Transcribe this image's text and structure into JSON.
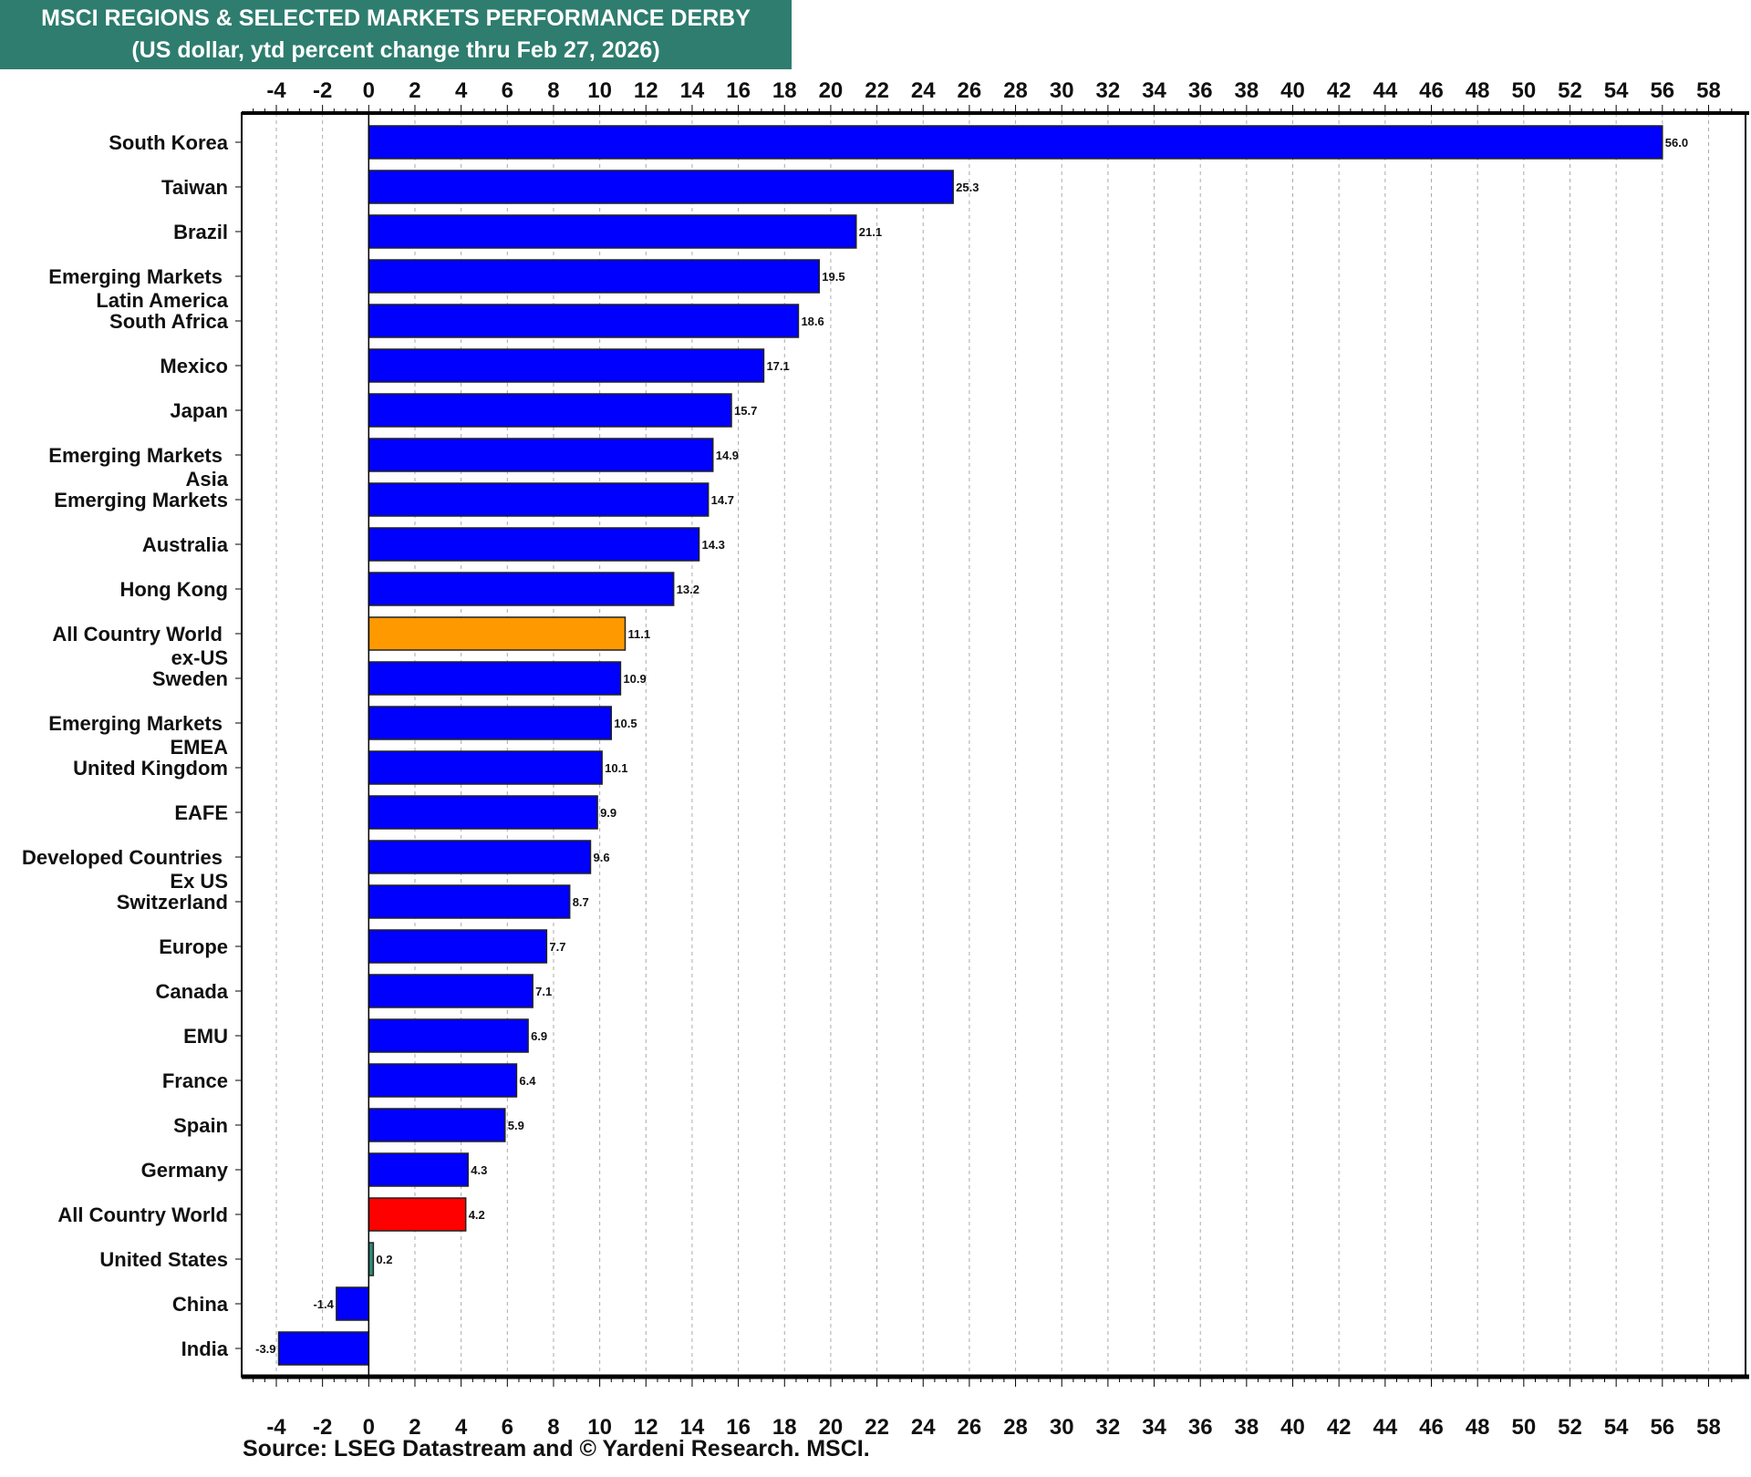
{
  "chart_data": {
    "type": "bar",
    "orientation": "horizontal",
    "title": "MSCI REGIONS & SELECTED MARKETS PERFORMANCE DERBY",
    "subtitle": "(US dollar, ytd percent change thru Feb 27, 2026)",
    "source": "Source: LSEG Datastream and © Yardeni Research. MSCI.",
    "xlim": [
      -5.5,
      59.6
    ],
    "xticks": [
      -4,
      -2,
      0,
      2,
      4,
      6,
      8,
      10,
      12,
      14,
      16,
      18,
      20,
      22,
      24,
      26,
      28,
      30,
      32,
      34,
      36,
      38,
      40,
      42,
      44,
      46,
      48,
      50,
      52,
      54,
      56,
      58
    ],
    "grid": true,
    "categories": [
      [
        "South Korea"
      ],
      [
        "Taiwan"
      ],
      [
        "Brazil"
      ],
      [
        "Emerging Markets",
        "Latin America"
      ],
      [
        "South Africa"
      ],
      [
        "Mexico"
      ],
      [
        "Japan"
      ],
      [
        "Emerging Markets",
        "Asia"
      ],
      [
        "Emerging Markets"
      ],
      [
        "Australia"
      ],
      [
        "Hong Kong"
      ],
      [
        "All Country World",
        "ex-US"
      ],
      [
        "Sweden"
      ],
      [
        "Emerging Markets",
        "EMEA"
      ],
      [
        "United Kingdom"
      ],
      [
        "EAFE"
      ],
      [
        "Developed Countries",
        "Ex US"
      ],
      [
        "Switzerland"
      ],
      [
        "Europe"
      ],
      [
        "Canada"
      ],
      [
        "EMU"
      ],
      [
        "France"
      ],
      [
        "Spain"
      ],
      [
        "Germany"
      ],
      [
        "All Country World"
      ],
      [
        "United States"
      ],
      [
        "China"
      ],
      [
        "India"
      ]
    ],
    "values": [
      56.0,
      25.3,
      21.1,
      19.5,
      18.6,
      17.1,
      15.7,
      14.9,
      14.7,
      14.3,
      13.2,
      11.1,
      10.9,
      10.5,
      10.1,
      9.9,
      9.6,
      8.7,
      7.7,
      7.1,
      6.9,
      6.4,
      5.9,
      4.3,
      4.2,
      0.2,
      -1.4,
      -3.9
    ],
    "value_labels": [
      "56.0",
      "25.3",
      "21.1",
      "19.5",
      "18.6",
      "17.1",
      "15.7",
      "14.9",
      "14.7",
      "14.3",
      "13.2",
      "11.1",
      "10.9",
      "10.5",
      "10.1",
      "9.9",
      "9.6",
      "8.7",
      "7.7",
      "7.1",
      "6.9",
      "6.4",
      "5.9",
      "4.3",
      "4.2",
      "0.2",
      "-1.4",
      "-3.9"
    ],
    "colors": {
      "default": "#0000ff",
      "All Country World ex-US": "#ff9900",
      "All Country World": "#ff0000",
      "United States": "#2e8b7a"
    },
    "bar_color_keys": [
      "default",
      "default",
      "default",
      "default",
      "default",
      "default",
      "default",
      "default",
      "default",
      "default",
      "default",
      "All Country World ex-US",
      "default",
      "default",
      "default",
      "default",
      "default",
      "default",
      "default",
      "default",
      "default",
      "default",
      "default",
      "default",
      "All Country World",
      "United States",
      "default",
      "default"
    ]
  }
}
